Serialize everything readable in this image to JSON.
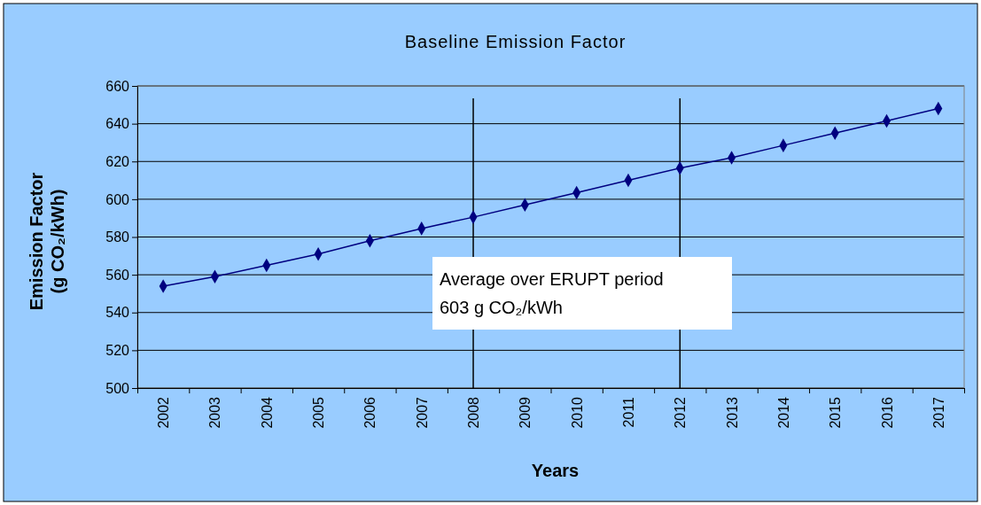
{
  "chart_data": {
    "type": "line",
    "title": "Baseline Emission Factor",
    "xlabel": "Years",
    "ylabel": "Emission Factor\n(g CO₂/kWh)",
    "categories": [
      "2002",
      "2003",
      "2004",
      "2005",
      "2006",
      "2007",
      "2008",
      "2009",
      "2010",
      "2011",
      "2012",
      "2013",
      "2014",
      "2015",
      "2016",
      "2017"
    ],
    "series": [
      {
        "color": "#000080",
        "values": [
          554,
          559,
          565,
          571,
          578,
          584.5,
          590.5,
          597,
          603.5,
          610,
          616.5,
          622,
          628.5,
          635,
          641.5,
          648
        ]
      }
    ],
    "ylim": [
      500,
      660
    ],
    "yticks": [
      500,
      520,
      540,
      560,
      580,
      600,
      620,
      640,
      660
    ],
    "grid": "y",
    "marker": "diamond",
    "line_style": "solid",
    "ref_lines": [
      {
        "axis": "x",
        "value": "2008",
        "color": "#000000"
      },
      {
        "axis": "x",
        "value": "2012",
        "color": "#000000"
      }
    ],
    "annotations": [
      "Average over ERUPT period\n603 g CO₂/kWh"
    ]
  }
}
